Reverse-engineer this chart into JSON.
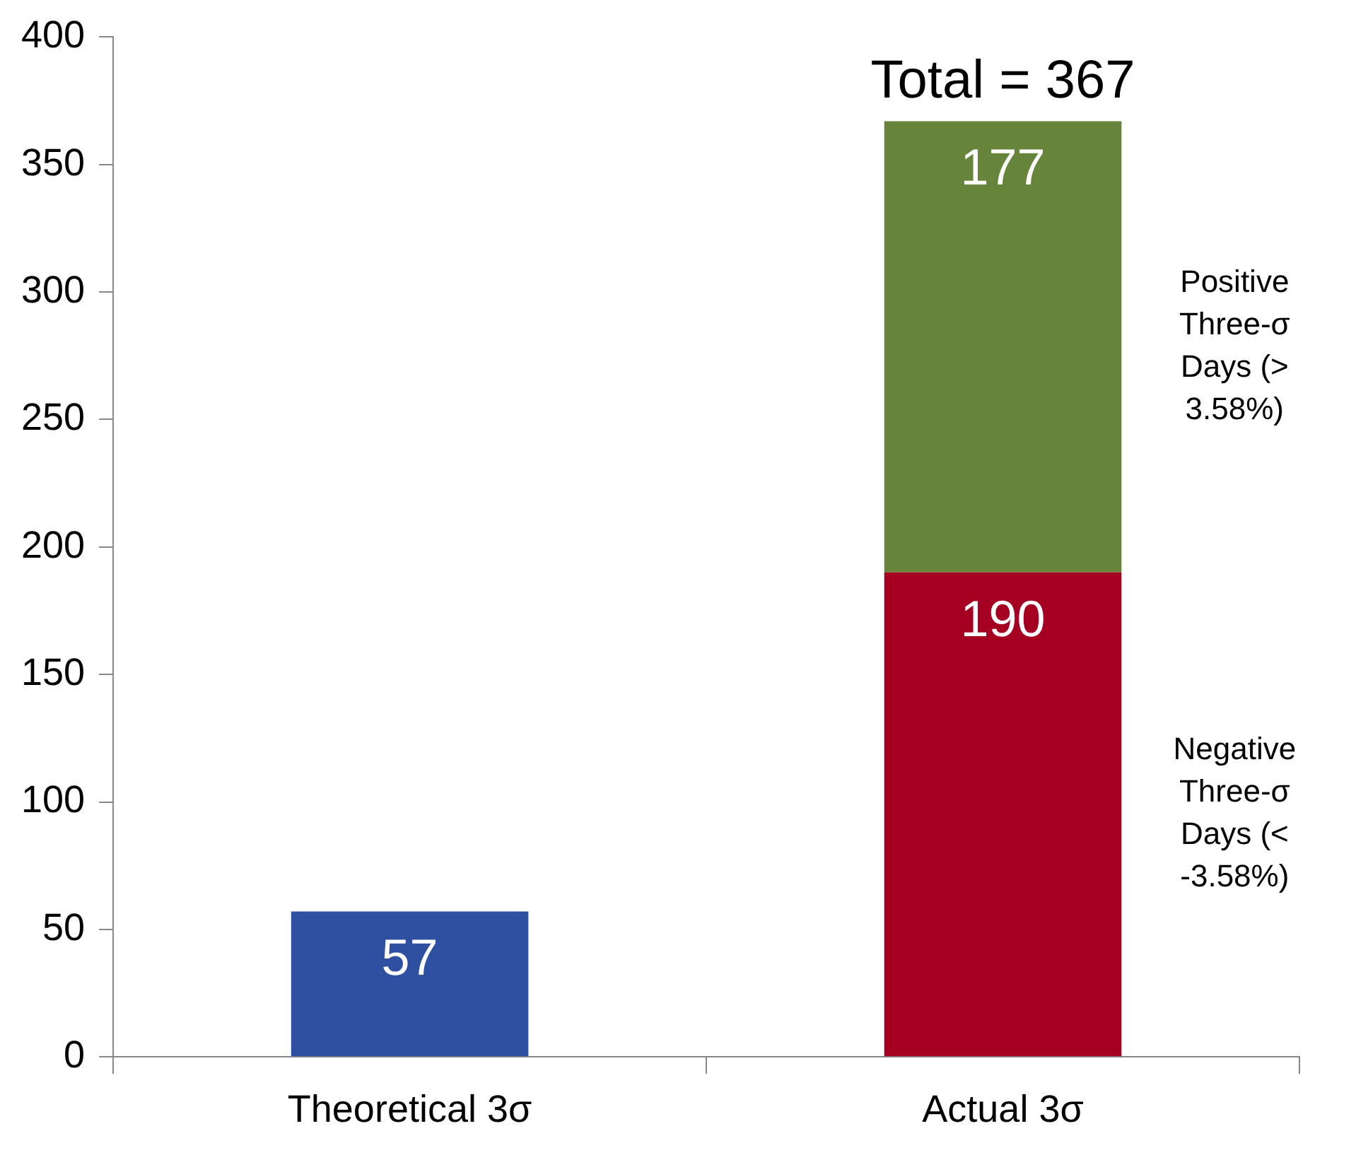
{
  "chart_data": {
    "type": "bar",
    "stacked": true,
    "categories": [
      "Theoretical 3σ",
      "Actual 3σ"
    ],
    "series": [
      {
        "color": "#2f50a0",
        "values": [
          57,
          null
        ]
      },
      {
        "name": "Negative Three-σ Days (< -3.58%)",
        "color": "#a50021",
        "values": [
          null,
          190
        ]
      },
      {
        "name": "Positive Three-σ Days (> 3.58%)",
        "color": "#66843a",
        "values": [
          null,
          177
        ]
      }
    ],
    "ylim": [
      0,
      400
    ],
    "yticks": [
      0,
      50,
      100,
      150,
      200,
      250,
      300,
      350,
      400
    ],
    "grid": false,
    "data_labels": true,
    "totals": [
      null,
      "Total = 367"
    ]
  }
}
